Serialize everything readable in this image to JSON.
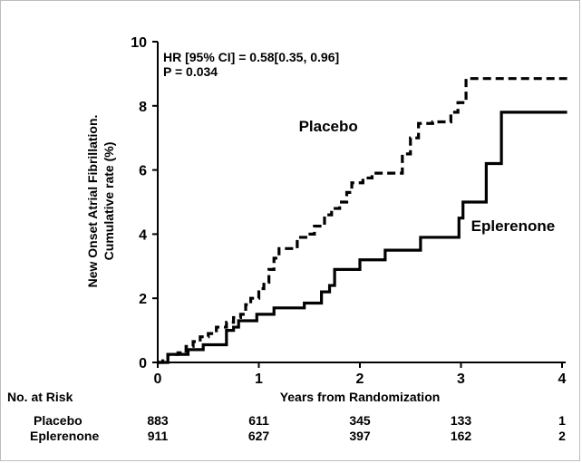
{
  "chart_data": {
    "type": "line",
    "step": true,
    "xlabel": "Years from Randomization",
    "ylabel": [
      "New Onset Atrial Fibrillation.",
      "Cumulative rate (%)"
    ],
    "xlim": [
      0,
      4
    ],
    "ylim": [
      0,
      10
    ],
    "x_ticks": [
      0,
      1,
      2,
      3,
      4
    ],
    "y_ticks": [
      0,
      2,
      4,
      6,
      8,
      10
    ],
    "grid": false,
    "annotation": [
      "HR [95% CI] = 0.58[0.35, 0.96]",
      "P = 0.034"
    ],
    "series": [
      {
        "name": "Placebo",
        "line_style": "dashed",
        "color": "#000000",
        "points": [
          [
            0,
            0
          ],
          [
            0.05,
            0.1
          ],
          [
            0.1,
            0.25
          ],
          [
            0.2,
            0.3
          ],
          [
            0.28,
            0.5
          ],
          [
            0.35,
            0.65
          ],
          [
            0.42,
            0.8
          ],
          [
            0.5,
            0.9
          ],
          [
            0.58,
            1.1
          ],
          [
            0.68,
            1.25
          ],
          [
            0.75,
            1.4
          ],
          [
            0.82,
            1.5
          ],
          [
            0.87,
            1.8
          ],
          [
            0.92,
            2.0
          ],
          [
            1.0,
            2.3
          ],
          [
            1.05,
            2.5
          ],
          [
            1.1,
            2.9
          ],
          [
            1.15,
            3.25
          ],
          [
            1.2,
            3.55
          ],
          [
            1.38,
            3.9
          ],
          [
            1.48,
            4.0
          ],
          [
            1.55,
            4.25
          ],
          [
            1.65,
            4.6
          ],
          [
            1.72,
            4.8
          ],
          [
            1.8,
            5.0
          ],
          [
            1.87,
            5.3
          ],
          [
            1.92,
            5.6
          ],
          [
            2.03,
            5.75
          ],
          [
            2.12,
            5.9
          ],
          [
            2.42,
            6.5
          ],
          [
            2.5,
            7.0
          ],
          [
            2.58,
            7.45
          ],
          [
            2.72,
            7.5
          ],
          [
            2.9,
            7.8
          ],
          [
            2.97,
            8.1
          ],
          [
            3.05,
            8.85
          ],
          [
            4.05,
            8.85
          ]
        ]
      },
      {
        "name": "Eplerenone",
        "line_style": "solid",
        "color": "#000000",
        "points": [
          [
            0,
            0
          ],
          [
            0.1,
            0.25
          ],
          [
            0.3,
            0.4
          ],
          [
            0.45,
            0.55
          ],
          [
            0.68,
            1.0
          ],
          [
            0.75,
            1.1
          ],
          [
            0.8,
            1.3
          ],
          [
            0.98,
            1.5
          ],
          [
            1.15,
            1.7
          ],
          [
            1.45,
            1.85
          ],
          [
            1.62,
            2.2
          ],
          [
            1.7,
            2.4
          ],
          [
            1.75,
            2.9
          ],
          [
            2.0,
            3.2
          ],
          [
            2.25,
            3.5
          ],
          [
            2.6,
            3.9
          ],
          [
            2.98,
            4.5
          ],
          [
            3.02,
            5.0
          ],
          [
            3.25,
            6.2
          ],
          [
            3.4,
            7.8
          ],
          [
            4.05,
            7.8
          ]
        ]
      }
    ],
    "series_labels": [
      {
        "name": "Placebo",
        "x": 1.98,
        "y": 7.2
      },
      {
        "name": "Eplerenone",
        "x": 3.1,
        "y": 4.1
      }
    ]
  },
  "risk_table": {
    "header": "No. at Risk",
    "rows": [
      {
        "label": "Placebo",
        "values": [
          "883",
          "611",
          "345",
          "133",
          "1"
        ]
      },
      {
        "label": "Eplerenone",
        "values": [
          "911",
          "627",
          "397",
          "162",
          "2"
        ]
      }
    ]
  }
}
